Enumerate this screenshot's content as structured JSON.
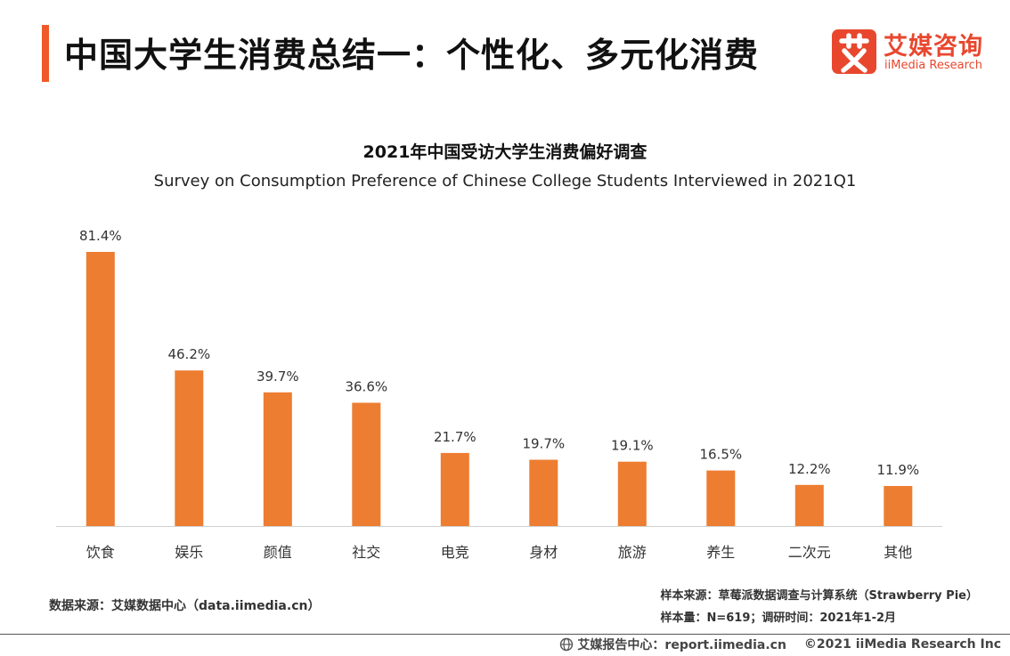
{
  "header": {
    "title": "中国大学生消费总结一：个性化、多元化消费",
    "accent_color": "#f05a28"
  },
  "logo": {
    "icon": "ai-logo-icon",
    "name_cn": "艾媒咨询",
    "name_en": "iiMedia Research",
    "color": "#e8472e"
  },
  "chart_data": {
    "type": "bar",
    "title": "2021年中国受访大学生消费偏好调查",
    "subtitle": "Survey on Consumption Preference of Chinese College Students Interviewed in 2021Q1",
    "categories": [
      "饮食",
      "娱乐",
      "颜值",
      "社交",
      "电竞",
      "身材",
      "旅游",
      "养生",
      "二次元",
      "其他"
    ],
    "values": [
      81.4,
      46.2,
      39.7,
      36.6,
      21.7,
      19.7,
      19.1,
      16.5,
      12.2,
      11.9
    ],
    "value_labels": [
      "81.4%",
      "46.2%",
      "39.7%",
      "36.6%",
      "21.7%",
      "19.7%",
      "19.1%",
      "16.5%",
      "12.2%",
      "11.9%"
    ],
    "bar_color": "#ed7d31",
    "ylim": [
      0,
      81.4
    ],
    "grid": false,
    "xlabel": "",
    "ylabel": ""
  },
  "footer": {
    "source": "数据来源：艾媒数据中心（data.iimedia.cn）",
    "sample_source": "样本来源：草莓派数据调查与计算系统（Strawberry Pie）",
    "sample_size": "样本量：N=619；调研时间：2021年1-2月",
    "report_center": "艾媒报告中心：report.iimedia.cn",
    "copyright": "©2021  iiMedia Research  Inc",
    "icon": "globe-icon"
  }
}
